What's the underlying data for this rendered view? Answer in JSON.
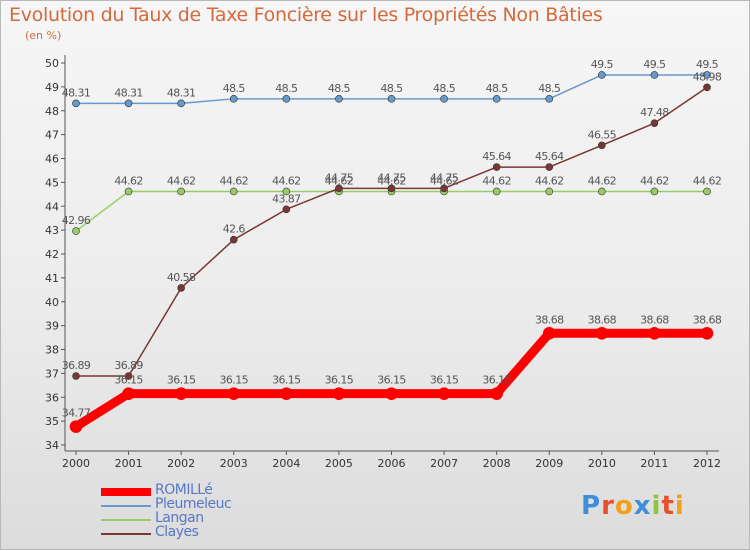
{
  "title": "Evolution du Taux de Taxe Foncière sur les Propriétés Non Bâties",
  "subtitle": "(en %)",
  "brand": "Proxiti",
  "chart_data": {
    "type": "line",
    "title": "Evolution du Taux de Taxe Foncière sur les Propriétés Non Bâties",
    "ylabel": "(en %)",
    "x": [
      "2000",
      "2001",
      "2002",
      "2003",
      "2004",
      "2005",
      "2006",
      "2007",
      "2008",
      "2009",
      "2010",
      "2011",
      "2012"
    ],
    "ylim": [
      34,
      50
    ],
    "yticks": [
      34,
      35,
      36,
      37,
      38,
      39,
      40,
      41,
      42,
      43,
      44,
      45,
      46,
      47,
      48,
      49,
      50
    ],
    "grid": false,
    "legend_position": "bottom-left",
    "series": [
      {
        "name": "ROMILLé",
        "color": "#ff0000",
        "values": [
          34.77,
          36.15,
          36.15,
          36.15,
          36.15,
          36.15,
          36.15,
          36.15,
          36.15,
          38.68,
          38.68,
          38.68,
          38.68
        ],
        "labels": [
          "34.77",
          "36.15",
          "36.15",
          "36.15",
          "36.15",
          "36.15",
          "36.15",
          "36.15",
          "36.15",
          "38.68",
          "38.68",
          "38.68",
          "38.68"
        ]
      },
      {
        "name": "Pleumeleuc",
        "color": "#6699cc",
        "values": [
          48.31,
          48.31,
          48.31,
          48.5,
          48.5,
          48.5,
          48.5,
          48.5,
          48.5,
          48.5,
          49.5,
          49.5,
          49.5
        ],
        "labels": [
          "48.31",
          "48.31",
          "48.31",
          "48.5",
          "48.5",
          "48.5",
          "48.5",
          "48.5",
          "48.5",
          "48.5",
          "49.5",
          "49.5",
          "49.5"
        ]
      },
      {
        "name": "Langan",
        "color": "#99cc66",
        "values": [
          42.96,
          44.62,
          44.62,
          44.62,
          44.62,
          44.62,
          44.62,
          44.62,
          44.62,
          44.62,
          44.62,
          44.62,
          44.62
        ],
        "labels": [
          "42.96",
          "44.62",
          "44.62",
          "44.62",
          "44.62",
          "44.62",
          "44.62",
          "44.62",
          "44.62",
          "44.62",
          "44.62",
          "44.62",
          "44.62"
        ]
      },
      {
        "name": "Clayes",
        "color": "#7a3535",
        "values": [
          36.89,
          36.89,
          40.58,
          42.6,
          43.87,
          44.75,
          44.75,
          44.75,
          45.64,
          45.64,
          46.55,
          47.48,
          48.98
        ],
        "labels": [
          "36.89",
          "36.89",
          "40.58",
          "42.6",
          "43.87",
          "44.75",
          "44.75",
          "44.75",
          "45.64",
          "45.64",
          "46.55",
          "47.48",
          "48.98"
        ]
      }
    ]
  }
}
